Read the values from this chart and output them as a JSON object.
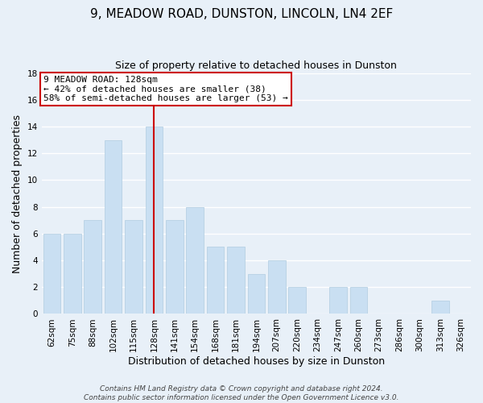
{
  "title": "9, MEADOW ROAD, DUNSTON, LINCOLN, LN4 2EF",
  "subtitle": "Size of property relative to detached houses in Dunston",
  "xlabel": "Distribution of detached houses by size in Dunston",
  "ylabel": "Number of detached properties",
  "categories": [
    "62sqm",
    "75sqm",
    "88sqm",
    "102sqm",
    "115sqm",
    "128sqm",
    "141sqm",
    "154sqm",
    "168sqm",
    "181sqm",
    "194sqm",
    "207sqm",
    "220sqm",
    "234sqm",
    "247sqm",
    "260sqm",
    "273sqm",
    "286sqm",
    "300sqm",
    "313sqm",
    "326sqm"
  ],
  "values": [
    6,
    6,
    7,
    13,
    7,
    14,
    7,
    8,
    5,
    5,
    3,
    4,
    2,
    0,
    2,
    2,
    0,
    0,
    0,
    1,
    0
  ],
  "bar_color": "#c9dff2",
  "bar_edgecolor": "#b0cce0",
  "highlight_index": 5,
  "highlight_line_color": "#cc0000",
  "ylim": [
    0,
    18
  ],
  "yticks": [
    0,
    2,
    4,
    6,
    8,
    10,
    12,
    14,
    16,
    18
  ],
  "annotation_title": "9 MEADOW ROAD: 128sqm",
  "annotation_line1": "← 42% of detached houses are smaller (38)",
  "annotation_line2": "58% of semi-detached houses are larger (53) →",
  "annotation_box_facecolor": "#ffffff",
  "annotation_box_edgecolor": "#cc0000",
  "footer_line1": "Contains HM Land Registry data © Crown copyright and database right 2024.",
  "footer_line2": "Contains public sector information licensed under the Open Government Licence v3.0.",
  "background_color": "#e8f0f8",
  "grid_color": "#ffffff",
  "title_fontsize": 11,
  "subtitle_fontsize": 9,
  "axis_label_fontsize": 9,
  "tick_fontsize": 7.5,
  "annotation_fontsize": 8,
  "footer_fontsize": 6.5
}
